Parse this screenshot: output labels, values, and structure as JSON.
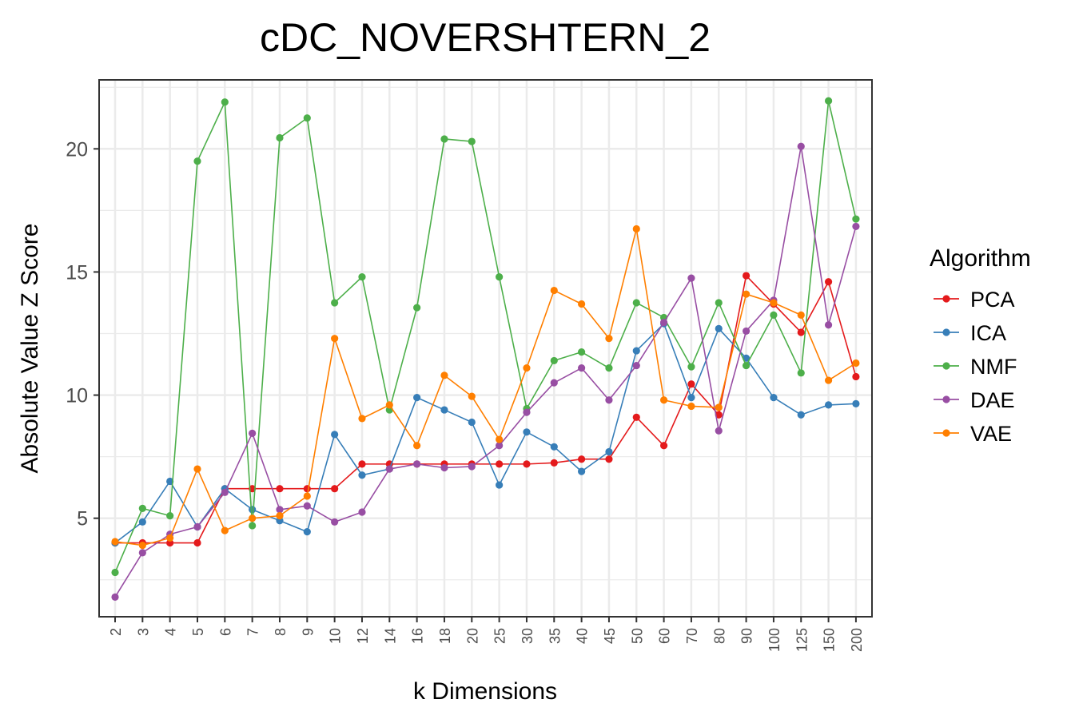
{
  "colors": {
    "PCA": "#e41a1c",
    "ICA": "#377eb8",
    "NMF": "#4daf4a",
    "DAE": "#984ea3",
    "VAE": "#ff7f00",
    "grid": "#ebebeb",
    "axis_text": "#4d4d4d"
  },
  "chart_data": {
    "type": "line",
    "title": "cDC_NOVERSHTERN_2",
    "xlabel": "k Dimensions",
    "ylabel": "Absolute Value Z Score",
    "categories": [
      "2",
      "3",
      "4",
      "5",
      "6",
      "7",
      "8",
      "9",
      "10",
      "12",
      "14",
      "16",
      "18",
      "20",
      "25",
      "30",
      "35",
      "40",
      "45",
      "50",
      "60",
      "70",
      "80",
      "90",
      "100",
      "125",
      "150",
      "200"
    ],
    "ylim": [
      1.0,
      22.8
    ],
    "yticks": [
      5,
      10,
      15,
      20
    ],
    "ytick_labels": [
      "5",
      "10",
      "15",
      "20"
    ],
    "grid": true,
    "legend_title": "Algorithm",
    "legend_position": "right",
    "series": [
      {
        "name": "PCA",
        "values": [
          4.0,
          4.0,
          4.0,
          4.0,
          6.2,
          6.2,
          6.2,
          6.2,
          6.2,
          7.2,
          7.2,
          7.2,
          7.2,
          7.2,
          7.2,
          7.2,
          7.25,
          7.4,
          7.4,
          9.1,
          7.95,
          10.45,
          9.2,
          14.85,
          13.7,
          12.55,
          14.6,
          10.75
        ]
      },
      {
        "name": "ICA",
        "values": [
          4.0,
          4.85,
          6.5,
          4.65,
          6.2,
          5.35,
          4.9,
          4.45,
          8.4,
          6.75,
          7.0,
          9.9,
          9.4,
          8.9,
          6.35,
          8.5,
          7.9,
          6.9,
          7.7,
          11.8,
          12.9,
          9.9,
          12.7,
          11.5,
          9.9,
          9.2,
          9.6,
          9.65
        ]
      },
      {
        "name": "NMF",
        "values": [
          2.8,
          5.4,
          5.1,
          19.5,
          21.9,
          4.7,
          20.45,
          21.25,
          13.75,
          14.8,
          9.4,
          13.55,
          20.4,
          20.3,
          14.8,
          9.45,
          11.4,
          11.75,
          11.1,
          13.75,
          13.15,
          11.15,
          13.75,
          11.2,
          13.25,
          10.9,
          21.95,
          17.15
        ]
      },
      {
        "name": "DAE",
        "values": [
          1.8,
          3.6,
          4.35,
          4.65,
          6.05,
          8.45,
          5.35,
          5.5,
          4.85,
          5.25,
          7.0,
          7.2,
          7.05,
          7.1,
          7.95,
          9.3,
          10.5,
          11.1,
          9.8,
          11.2,
          12.95,
          14.75,
          8.55,
          12.6,
          13.85,
          20.1,
          12.85,
          16.85
        ]
      },
      {
        "name": "VAE",
        "values": [
          4.05,
          3.9,
          4.2,
          7.0,
          4.5,
          5.0,
          5.1,
          5.9,
          12.3,
          9.05,
          9.6,
          7.95,
          10.8,
          9.95,
          8.2,
          11.1,
          14.25,
          13.7,
          12.3,
          16.75,
          9.8,
          9.55,
          9.5,
          14.1,
          13.75,
          13.25,
          10.6,
          11.3
        ]
      }
    ]
  }
}
